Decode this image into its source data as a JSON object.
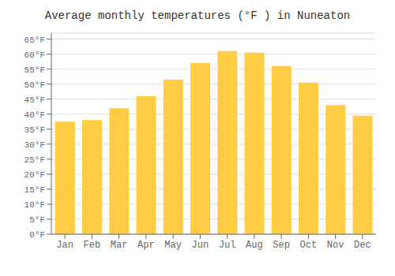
{
  "chart_data": {
    "type": "bar",
    "title": "Average monthly temperatures (°F ) in Nuneaton",
    "categories": [
      "Jan",
      "Feb",
      "Mar",
      "Apr",
      "May",
      "Jun",
      "Jul",
      "Aug",
      "Sep",
      "Oct",
      "Nov",
      "Dec"
    ],
    "values": [
      37.5,
      38.0,
      42.0,
      46.0,
      51.5,
      57.0,
      61.0,
      60.5,
      56.0,
      50.5,
      43.0,
      39.5
    ],
    "color": "#FFCC44",
    "ylim": [
      0,
      67
    ],
    "yticks": [
      {
        "value": 0,
        "label": "0°F"
      },
      {
        "value": 5,
        "label": "5°F"
      },
      {
        "value": 10,
        "label": "10°F"
      },
      {
        "value": 15,
        "label": "15°F"
      },
      {
        "value": 20,
        "label": "20°F"
      },
      {
        "value": 25,
        "label": "25°F"
      },
      {
        "value": 30,
        "label": "30°F"
      },
      {
        "value": 35,
        "label": "35°F"
      },
      {
        "value": 40,
        "label": "40°F"
      },
      {
        "value": 45,
        "label": "45°F"
      },
      {
        "value": 50,
        "label": "50°F"
      },
      {
        "value": 55,
        "label": "55°F"
      },
      {
        "value": 60,
        "label": "60°F"
      },
      {
        "value": 65,
        "label": "65°F"
      }
    ],
    "grid": true
  }
}
